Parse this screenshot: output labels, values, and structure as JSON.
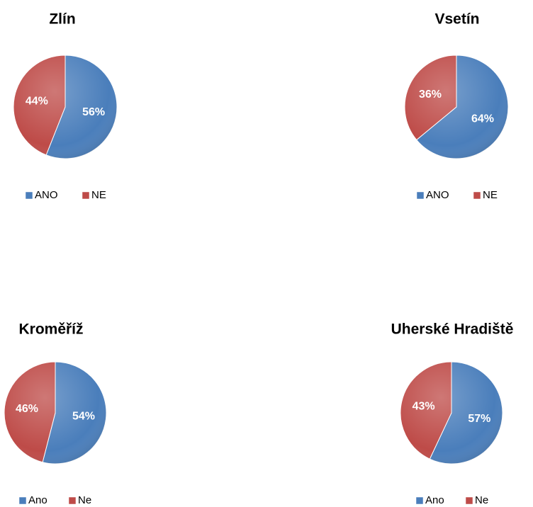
{
  "chart_data": [
    {
      "type": "pie",
      "title": "Zlín",
      "categories": [
        "ANO",
        "NE"
      ],
      "values": [
        56,
        44
      ],
      "value_labels": [
        "56%",
        "44%"
      ],
      "colors": [
        "#4a7ebb",
        "#be4b48"
      ]
    },
    {
      "type": "pie",
      "title": "Vsetín",
      "categories": [
        "ANO",
        "NE"
      ],
      "values": [
        64,
        36
      ],
      "value_labels": [
        "64%",
        "36%"
      ],
      "colors": [
        "#4a7ebb",
        "#be4b48"
      ]
    },
    {
      "type": "pie",
      "title": "Kroměříž",
      "categories": [
        "Ano",
        "Ne"
      ],
      "values": [
        54,
        46
      ],
      "value_labels": [
        "54%",
        "46%"
      ],
      "colors": [
        "#4a7ebb",
        "#be4b48"
      ]
    },
    {
      "type": "pie",
      "title": "Uherské Hradiště",
      "categories": [
        "Ano",
        "Ne"
      ],
      "values": [
        57,
        43
      ],
      "value_labels": [
        "57%",
        "43%"
      ],
      "colors": [
        "#4a7ebb",
        "#be4b48"
      ]
    }
  ]
}
